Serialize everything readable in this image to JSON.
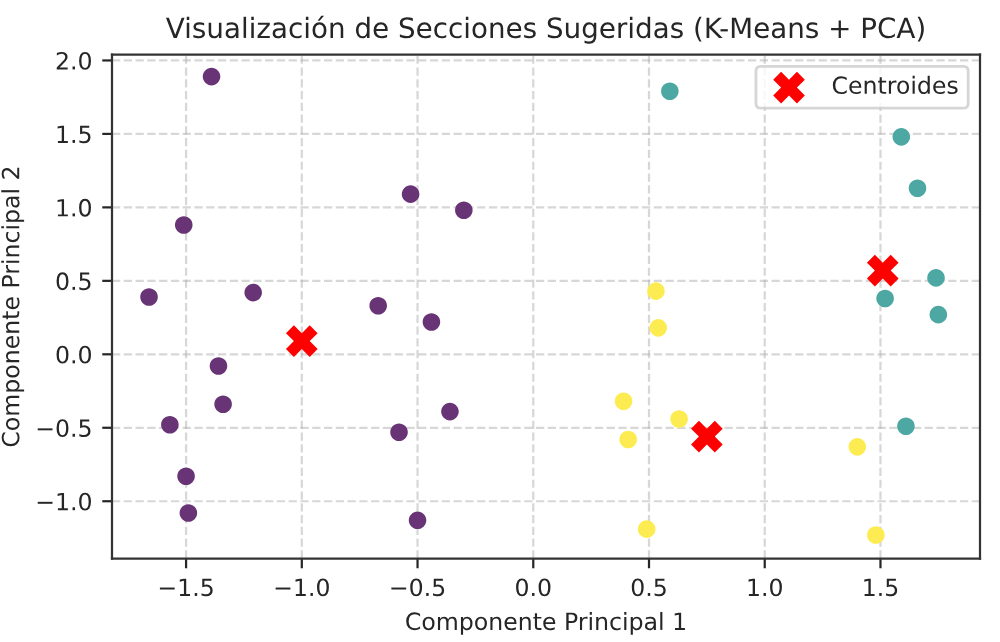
{
  "chart_data": {
    "type": "scatter",
    "title": "Visualización de Secciones Sugeridas (K-Means + PCA)",
    "xlabel": "Componente Principal 1",
    "ylabel": "Componente Principal 2",
    "xlim": [
      -1.82,
      1.93
    ],
    "ylim": [
      -1.39,
      2.04
    ],
    "xticks": [
      {
        "value": -1.5,
        "label": "−1.5"
      },
      {
        "value": -1.0,
        "label": "−1.0"
      },
      {
        "value": -0.5,
        "label": "−0.5"
      },
      {
        "value": 0,
        "label": "0.0"
      },
      {
        "value": 0.5,
        "label": "0.5"
      },
      {
        "value": 1.0,
        "label": "1.0"
      },
      {
        "value": 1.5,
        "label": "1.5"
      }
    ],
    "yticks": [
      {
        "value": -1.0,
        "label": "−1.0"
      },
      {
        "value": -0.5,
        "label": "−0.5"
      },
      {
        "value": 0,
        "label": "0.0"
      },
      {
        "value": 0.5,
        "label": "0.5"
      },
      {
        "value": 1.0,
        "label": "1.0"
      },
      {
        "value": 1.5,
        "label": "1.5"
      },
      {
        "value": 2.0,
        "label": "2.0"
      }
    ],
    "grid": true,
    "legend": "top right",
    "series": [
      {
        "color": "#693476",
        "marker": "circle",
        "x": [
          -1.39,
          -1.51,
          -1.66,
          -1.21,
          -1.36,
          -1.34,
          -1.57,
          -1.5,
          -1.49,
          -0.53,
          -0.3,
          -0.67,
          -0.44,
          -0.36,
          -0.58,
          -0.5
        ],
        "values": [
          1.89,
          0.88,
          0.39,
          0.42,
          -0.08,
          -0.34,
          -0.48,
          -0.83,
          -1.08,
          1.09,
          0.98,
          0.33,
          0.22,
          -0.39,
          -0.53,
          -1.13
        ]
      },
      {
        "color": "#4da7a3",
        "marker": "circle",
        "x": [
          0.59,
          1.59,
          1.66,
          1.74,
          1.52,
          1.75,
          1.61
        ],
        "values": [
          1.79,
          1.48,
          1.13,
          0.52,
          0.38,
          0.27,
          -0.49
        ]
      },
      {
        "color": "#fdec51",
        "marker": "circle",
        "x": [
          0.53,
          0.54,
          0.39,
          0.63,
          0.41,
          1.4,
          0.49,
          1.48
        ],
        "values": [
          0.43,
          0.18,
          -0.32,
          -0.44,
          -0.58,
          -0.63,
          -1.19,
          -1.23
        ]
      },
      {
        "name": "Centroides",
        "color": "#ff0000",
        "marker": "cross",
        "x": [
          -1.0,
          1.51,
          0.75
        ],
        "values": [
          0.09,
          0.57,
          -0.56
        ]
      }
    ]
  }
}
